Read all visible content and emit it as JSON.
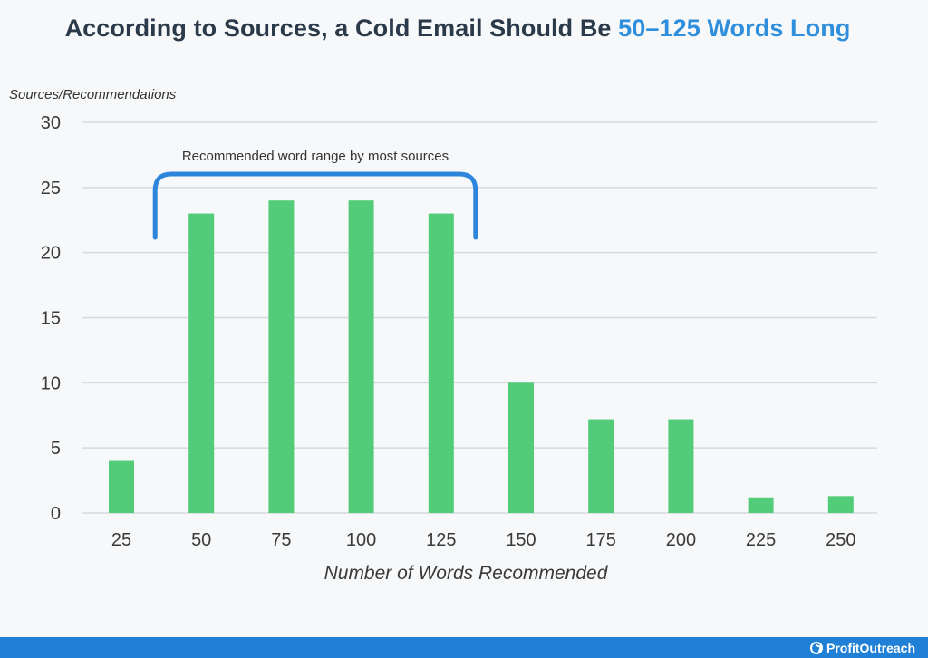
{
  "title": {
    "prefix": "According to Sources, a Cold Email Should Be ",
    "highlight": "50–125 Words Long"
  },
  "colors": {
    "bar": "#52cc78",
    "highlight": "#2f8fdc",
    "bracket": "#2e86dc",
    "grid": "#d7dadd",
    "footer": "#1f80d6",
    "title_text": "#2b3a4a"
  },
  "chart_data": {
    "type": "bar",
    "categories": [
      "25",
      "50",
      "75",
      "100",
      "125",
      "150",
      "175",
      "200",
      "225",
      "250"
    ],
    "values": [
      4,
      23,
      24,
      24,
      23,
      10,
      7.2,
      7.2,
      1.2,
      1.3
    ],
    "xlabel": "Number of Words Recommended",
    "ylabel": "Sources/Recommendations",
    "ylim": [
      0,
      30
    ],
    "yticks": [
      0,
      5,
      10,
      15,
      20,
      25,
      30
    ],
    "grid": true,
    "annotation": {
      "text": "Recommended word range by most sources",
      "categories": [
        "50",
        "75",
        "100",
        "125"
      ]
    }
  },
  "footer": {
    "logo_text": "ProfitOutreach",
    "logo_icon": "check-circle-icon"
  }
}
